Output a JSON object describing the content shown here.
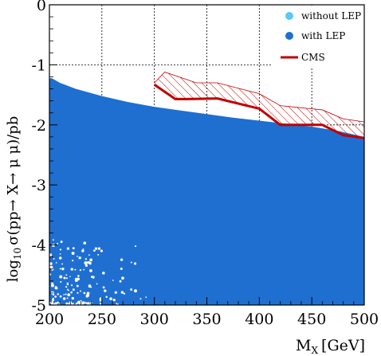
{
  "chart_data": {
    "type": "scatter",
    "title": "",
    "xlabel": "M",
    "xlabel_sub": "X",
    "xlabel_unit": "[GeV]",
    "ylabel": "log",
    "ylabel_sub": "10",
    "ylabel_rest": "σ(pp→ X→ μ μ)/pb",
    "xlim": [
      200,
      500
    ],
    "ylim": [
      -5,
      0
    ],
    "xticks": [
      200,
      250,
      300,
      350,
      400,
      450,
      500
    ],
    "xtick_labels": [
      "200",
      "250",
      "300",
      "350",
      "400",
      "450",
      "500"
    ],
    "yticks": [
      0,
      -1,
      -2,
      -3,
      -4,
      -5
    ],
    "ytick_labels": [
      "0",
      "-1",
      "-2",
      "-3",
      "-4",
      "-5"
    ],
    "grid": true,
    "legend_position": "top-right",
    "legend": [
      {
        "label": "without LEP",
        "marker": "dot",
        "color": "#5bc8f5"
      },
      {
        "label": "with LEP",
        "marker": "dot",
        "color": "#1f6fd1"
      },
      {
        "label": "CMS",
        "marker": "line",
        "color": "#c00000"
      }
    ],
    "series": [
      {
        "name": "with LEP",
        "kind": "filled-region",
        "color": "#1f6fd1",
        "upper_boundary": {
          "x": [
            200,
            202,
            210,
            225,
            250,
            275,
            300,
            325,
            350,
            375,
            400,
            425,
            450,
            475,
            500
          ],
          "y": [
            -1.23,
            -1.22,
            -1.3,
            -1.4,
            -1.52,
            -1.62,
            -1.7,
            -1.76,
            -1.82,
            -1.88,
            -1.93,
            -1.98,
            -2.03,
            -2.1,
            -2.2
          ]
        },
        "lower_boundary": -5
      },
      {
        "name": "CMS",
        "kind": "line",
        "color": "#c00000",
        "x": [
          300,
          320,
          330,
          360,
          400,
          420,
          460,
          480,
          500
        ],
        "y": [
          -1.33,
          -1.57,
          -1.57,
          -1.56,
          -1.73,
          -2.0,
          -2.0,
          -2.17,
          -2.22
        ]
      },
      {
        "name": "CMS band",
        "kind": "hatched-band",
        "color": "#c00000",
        "x": [
          300,
          310,
          340,
          360,
          400,
          420,
          460,
          480,
          500
        ],
        "y_upper": [
          -1.3,
          -1.12,
          -1.3,
          -1.3,
          -1.48,
          -1.68,
          -1.75,
          -1.9,
          -1.95
        ]
      }
    ]
  }
}
